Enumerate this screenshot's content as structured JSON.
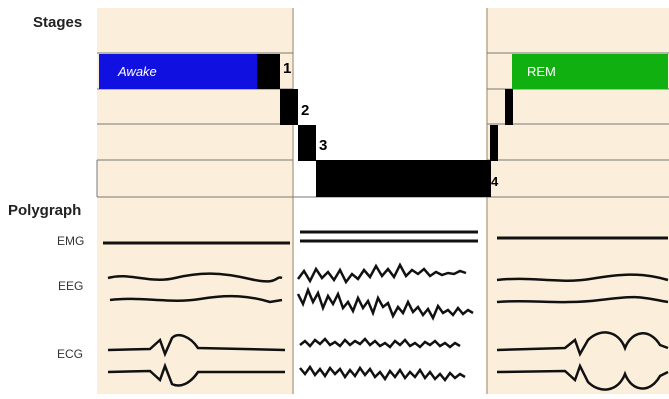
{
  "headings": {
    "stages": "Stages",
    "polygraph": "Polygraph"
  },
  "stages": {
    "awake": "Awake",
    "rem": "REM",
    "numbers": [
      "1",
      "2",
      "3",
      "4"
    ]
  },
  "signals": {
    "emg": "EMG",
    "eeg": "EEG",
    "ecg": "ECG"
  },
  "colors": {
    "panel": "#fbefdc",
    "awake": "#1010e0",
    "rem": "#10b010",
    "bar": "#000000",
    "divider": "#b8a890"
  }
}
